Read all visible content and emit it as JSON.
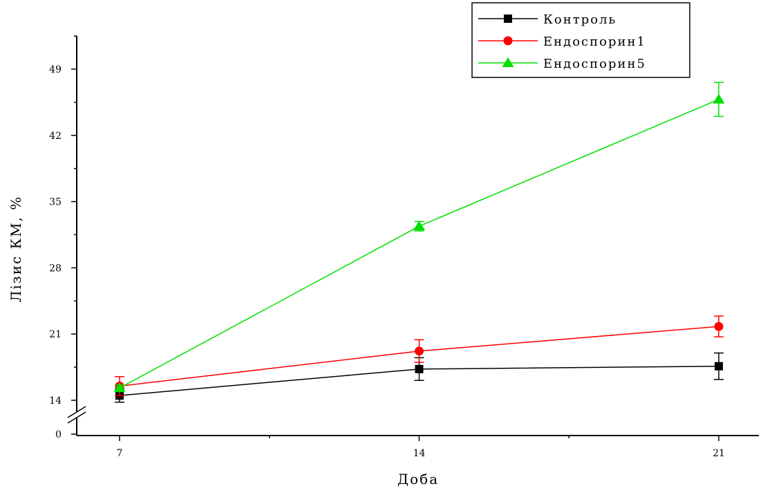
{
  "chart_data": {
    "type": "line",
    "title": "",
    "xlabel": "Доба",
    "ylabel": "Лізис КМ, %",
    "x": [
      7,
      14,
      21
    ],
    "x_ticks": [
      "7",
      "14",
      "21"
    ],
    "y_ticks": [
      "0",
      "14",
      "21",
      "28",
      "35",
      "42",
      "49"
    ],
    "ylim": [
      14,
      53
    ],
    "y_axis_break": true,
    "grid": false,
    "legend_position": "top-right",
    "series": [
      {
        "name": "Контроль",
        "color": "#000000",
        "marker": "square",
        "values": [
          14.5,
          17.3,
          17.6
        ],
        "errors": [
          0.7,
          1.2,
          1.4
        ]
      },
      {
        "name": "Ендоспорин1",
        "color": "#ff0000",
        "marker": "circle",
        "values": [
          15.5,
          19.2,
          21.8
        ],
        "errors": [
          1.0,
          1.2,
          1.1
        ]
      },
      {
        "name": "Ендоспорин5",
        "color": "#00e000",
        "marker": "triangle",
        "values": [
          15.3,
          32.4,
          45.8
        ],
        "errors": [
          0.3,
          0.5,
          1.8
        ]
      }
    ]
  }
}
